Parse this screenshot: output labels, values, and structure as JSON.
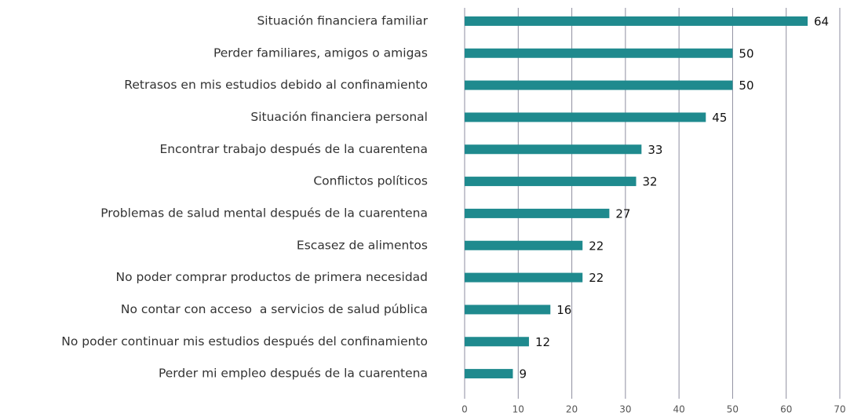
{
  "chart_data": {
    "type": "barh",
    "categories": [
      "Situación financiera familiar",
      "Perder familiares, amigos o amigas",
      "Retrasos en mis estudios debido al confinamiento",
      "Situación financiera personal",
      "Encontrar trabajo después de la cuarentena",
      "Conflictos políticos",
      "Problemas de salud mental después de la cuarentena",
      "Escasez de alimentos",
      "No poder comprar productos de primera necesidad",
      "No contar con acceso  a servicios de salud pública",
      "No poder continuar mis estudios después del confinamiento",
      "Perder mi empleo después de la cuarentena"
    ],
    "values": [
      64,
      50,
      50,
      45,
      33,
      32,
      27,
      22,
      22,
      16,
      12,
      9
    ],
    "color": "#1f8a8e",
    "xlim": [
      0,
      70
    ],
    "xticks": [
      0,
      10,
      20,
      30,
      40,
      50,
      60,
      70
    ],
    "grid": true
  }
}
